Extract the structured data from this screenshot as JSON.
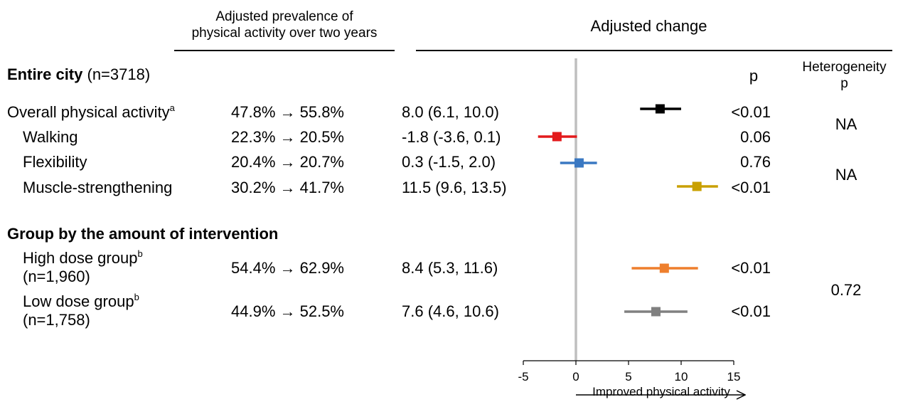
{
  "headers": {
    "prevalence_line1": "Adjusted prevalence of",
    "prevalence_line2": "physical activity over two years",
    "change": "Adjusted change",
    "p": "p",
    "heterogeneity_line1": "Heterogeneity",
    "heterogeneity_line2": "p"
  },
  "sections": {
    "entire_city_bold": "Entire city",
    "entire_city_n": " (n=3718)",
    "group_by": "Group by the amount of intervention"
  },
  "rows": [
    {
      "label": "Overall physical activity",
      "sup": "a",
      "label2": "",
      "prevalence": "47.8% → 55.8%",
      "change": "8.0 (6.1, 10.0)",
      "p": "<0.01"
    },
    {
      "label": "Walking",
      "sup": "",
      "label2": "",
      "prevalence": "22.3% → 20.5%",
      "change": "-1.8 (-3.6, 0.1)",
      "p": "0.06"
    },
    {
      "label": "Flexibility",
      "sup": "",
      "label2": "",
      "prevalence": "20.4% → 20.7%",
      "change": "0.3 (-1.5, 2.0)",
      "p": "0.76"
    },
    {
      "label": "Muscle-strengthening",
      "sup": "",
      "label2": "",
      "prevalence": "30.2% → 41.7%",
      "change": "11.5 (9.6, 13.5)",
      "p": "<0.01"
    },
    {
      "label": "High dose group",
      "sup": "b",
      "label2": "(n=1,960)",
      "prevalence": "54.4% → 62.9%",
      "change": "8.4 (5.3, 11.6)",
      "p": "<0.01"
    },
    {
      "label": "Low dose group",
      "sup": "b",
      "label2": "(n=1,758)",
      "prevalence": "44.9% → 52.5%",
      "change": "7.6 (4.6, 10.6)",
      "p": "<0.01"
    }
  ],
  "heterogeneity": [
    "NA",
    "NA",
    "0.72"
  ],
  "axis": {
    "ticks": [
      -5,
      0,
      5,
      10,
      15
    ],
    "tick_labels": [
      "-5",
      "0",
      "5",
      "10",
      "15"
    ],
    "direction_label": "Improved physical activity"
  },
  "chart_data": {
    "type": "scatter",
    "title": "Adjusted change",
    "xlabel": "Improved physical activity",
    "xlim": [
      -5,
      15
    ],
    "reference_line": 0,
    "categories": [
      "Overall physical activity",
      "Walking",
      "Flexibility",
      "Muscle-strengthening",
      "High dose group",
      "Low dose group"
    ],
    "estimates": [
      8.0,
      -1.8,
      0.3,
      11.5,
      8.4,
      7.6
    ],
    "ci_lower": [
      6.1,
      -3.6,
      -1.5,
      9.6,
      5.3,
      4.6
    ],
    "ci_upper": [
      10.0,
      0.1,
      2.0,
      13.5,
      11.6,
      10.6
    ],
    "colors": [
      "#000000",
      "#e31a1c",
      "#3a78c2",
      "#c9a000",
      "#ee7f2d",
      "#808080"
    ]
  }
}
